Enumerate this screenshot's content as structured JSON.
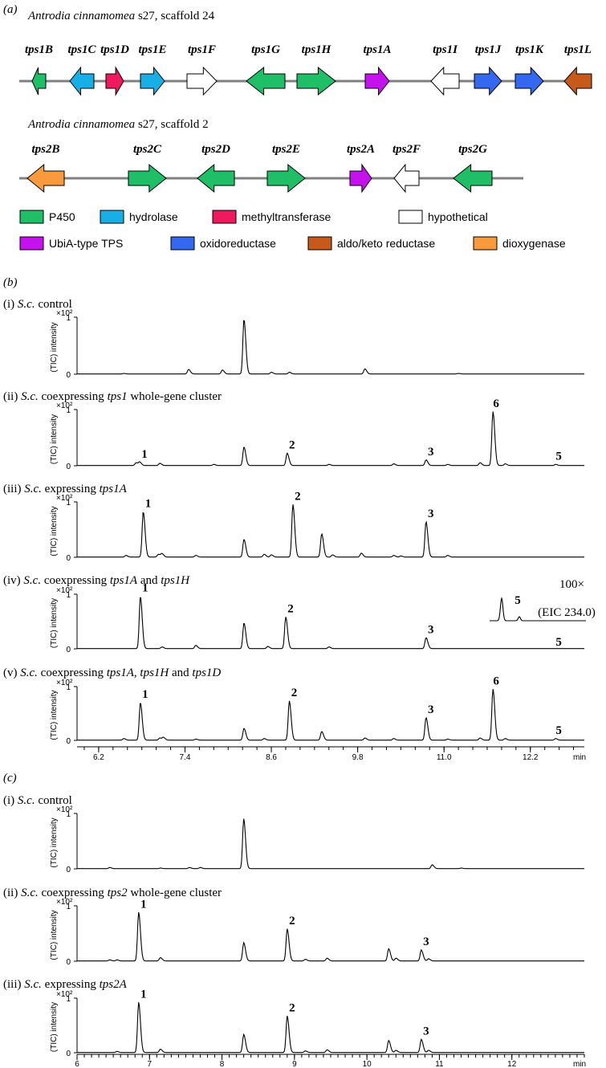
{
  "panel_a": {
    "label": "(a)",
    "colors": {
      "P450": "#1fbf68",
      "hydrolase": "#18aee6",
      "methyltransferase": "#f0185e",
      "hypothetical": "#ffffff",
      "UbiA-type TPS": "#c411ee",
      "oxidoreductase": "#3568f0",
      "aldo/keto reductase": "#c7591a",
      "dioxygenase": "#f99a3c"
    },
    "clusters": [
      {
        "title_species": "Antrodia cinnamomea",
        "title_rest": " s27, scaffold 24",
        "genes": [
          {
            "name": "tps1B",
            "type": "P450",
            "dir": "left"
          },
          {
            "name": "tps1C",
            "type": "hydrolase",
            "dir": "left"
          },
          {
            "name": "tps1D",
            "type": "methyltransferase",
            "dir": "right"
          },
          {
            "name": "tps1E",
            "type": "hydrolase",
            "dir": "right"
          },
          {
            "name": "tps1F",
            "type": "hypothetical",
            "dir": "right"
          },
          {
            "name": "tps1G",
            "type": "P450",
            "dir": "left"
          },
          {
            "name": "tps1H",
            "type": "P450",
            "dir": "right"
          },
          {
            "name": "tps1A",
            "type": "UbiA-type TPS",
            "dir": "right"
          },
          {
            "name": "tps1I",
            "type": "hypothetical",
            "dir": "left"
          },
          {
            "name": "tps1J",
            "type": "oxidoreductase",
            "dir": "right"
          },
          {
            "name": "tps1K",
            "type": "oxidoreductase",
            "dir": "right"
          },
          {
            "name": "tps1L",
            "type": "aldo/keto reductase",
            "dir": "left"
          }
        ]
      },
      {
        "title_species": "Antrodia cinnamomea",
        "title_rest": " s27, scaffold 2",
        "genes": [
          {
            "name": "tps2B",
            "type": "dioxygenase",
            "dir": "left"
          },
          {
            "name": "tps2C",
            "type": "P450",
            "dir": "right"
          },
          {
            "name": "tps2D",
            "type": "P450",
            "dir": "left"
          },
          {
            "name": "tps2E",
            "type": "P450",
            "dir": "right"
          },
          {
            "name": "tps2A",
            "type": "UbiA-type TPS",
            "dir": "right"
          },
          {
            "name": "tps2F",
            "type": "hypothetical",
            "dir": "left"
          },
          {
            "name": "tps2G",
            "type": "P450",
            "dir": "left"
          }
        ]
      }
    ],
    "legend": [
      "P450",
      "hydrolase",
      "methyltransferase",
      "hypothetical",
      "UbiA-type TPS",
      "oxidoreductase",
      "aldo/keto reductase",
      "dioxygenase"
    ]
  },
  "chart_data": [
    {
      "panel": "(b)",
      "type": "line",
      "xlabel": "min",
      "xlim": [
        5.9,
        12.95
      ],
      "xticks": [
        "6.2",
        "7.4",
        "8.6",
        "9.8",
        "11.0",
        "12.2"
      ],
      "xtick_values": [
        6.2,
        7.4,
        8.6,
        9.8,
        11.0,
        12.2
      ],
      "ylabel": "(TIC) intensity",
      "yscale": "×10²",
      "yticks": [
        "0",
        "1"
      ],
      "ylim": [
        0,
        1
      ],
      "traces": [
        {
          "roman": "(i)",
          "title": [
            [
              "S.c.",
              "i"
            ],
            [
              " control",
              "n"
            ]
          ],
          "peaks": [
            [
              7.45,
              0.08
            ],
            [
              7.92,
              0.07
            ],
            [
              8.22,
              0.96
            ],
            [
              8.6,
              0.03
            ],
            [
              8.85,
              0.03
            ],
            [
              9.9,
              0.09
            ],
            [
              6.55,
              0.01
            ],
            [
              11.2,
              0.01
            ]
          ],
          "labels": [],
          "inset": null
        },
        {
          "roman": "(ii)",
          "title": [
            [
              "S.c.",
              "i"
            ],
            [
              " coexpressing ",
              "n"
            ],
            [
              "tps1",
              "i"
            ],
            [
              " whole-gene cluster",
              "n"
            ]
          ],
          "peaks": [
            [
              6.72,
              0.05
            ],
            [
              6.77,
              0.06
            ],
            [
              7.05,
              0.04
            ],
            [
              7.8,
              0.02
            ],
            [
              8.22,
              0.33
            ],
            [
              8.82,
              0.22
            ],
            [
              9.4,
              0.02
            ],
            [
              10.3,
              0.03
            ],
            [
              10.75,
              0.1
            ],
            [
              11.05,
              0.02
            ],
            [
              11.5,
              0.05
            ],
            [
              11.68,
              0.96
            ],
            [
              11.85,
              0.03
            ],
            [
              12.55,
              0.02
            ]
          ],
          "labels": [
            {
              "t": "1",
              "x": 6.77,
              "y": 0.06
            },
            {
              "t": "2",
              "x": 8.82,
              "y": 0.22
            },
            {
              "t": "3",
              "x": 10.75,
              "y": 0.1
            },
            {
              "t": "6",
              "x": 11.68,
              "y": 0.96
            },
            {
              "t": "5",
              "x": 12.55,
              "y": 0.02
            }
          ],
          "inset": null
        },
        {
          "roman": "(iii)",
          "title": [
            [
              "S.c.",
              "i"
            ],
            [
              " expressing ",
              "n"
            ],
            [
              "tps1A",
              "i"
            ]
          ],
          "peaks": [
            [
              6.58,
              0.03
            ],
            [
              6.82,
              0.82
            ],
            [
              7.03,
              0.05
            ],
            [
              7.08,
              0.06
            ],
            [
              7.55,
              0.03
            ],
            [
              8.22,
              0.32
            ],
            [
              8.5,
              0.05
            ],
            [
              8.6,
              0.04
            ],
            [
              8.9,
              0.95
            ],
            [
              9.3,
              0.42
            ],
            [
              9.45,
              0.04
            ],
            [
              9.85,
              0.07
            ],
            [
              10.3,
              0.03
            ],
            [
              10.4,
              0.02
            ],
            [
              10.75,
              0.64
            ],
            [
              11.05,
              0.03
            ]
          ],
          "labels": [
            {
              "t": "1",
              "x": 6.82,
              "y": 0.82
            },
            {
              "t": "2",
              "x": 8.9,
              "y": 0.95
            },
            {
              "t": "3",
              "x": 10.75,
              "y": 0.64
            }
          ],
          "inset": null
        },
        {
          "roman": "(iv)",
          "title": [
            [
              "S.c.",
              "i"
            ],
            [
              " coexpressing ",
              "n"
            ],
            [
              "tps1A",
              "i"
            ],
            [
              " and ",
              "n"
            ],
            [
              "tps1H",
              "i"
            ]
          ],
          "peaks": [
            [
              6.78,
              0.96
            ],
            [
              7.08,
              0.03
            ],
            [
              7.55,
              0.06
            ],
            [
              8.22,
              0.47
            ],
            [
              8.55,
              0.04
            ],
            [
              8.8,
              0.58
            ],
            [
              9.4,
              0.03
            ],
            [
              10.75,
              0.2
            ]
          ],
          "labels": [
            {
              "t": "1",
              "x": 6.78,
              "y": 0.96
            },
            {
              "t": "2",
              "x": 8.8,
              "y": 0.58
            },
            {
              "t": "3",
              "x": 10.75,
              "y": 0.2
            },
            {
              "t": "5",
              "x": 12.55,
              "y": 0.02
            }
          ],
          "inset": {
            "scale": "100×",
            "label": "5",
            "eic": "(EIC 234.0)"
          }
        },
        {
          "roman": "(v)",
          "title": [
            [
              "S.c.",
              "i"
            ],
            [
              " coexpressing ",
              "n"
            ],
            [
              "tps1A, tps1H",
              "i"
            ],
            [
              " and ",
              "n"
            ],
            [
              "tps1D",
              "i"
            ]
          ],
          "peaks": [
            [
              6.55,
              0.03
            ],
            [
              6.78,
              0.7
            ],
            [
              7.05,
              0.04
            ],
            [
              7.1,
              0.05
            ],
            [
              7.55,
              0.02
            ],
            [
              8.22,
              0.22
            ],
            [
              8.5,
              0.03
            ],
            [
              8.85,
              0.73
            ],
            [
              9.3,
              0.16
            ],
            [
              9.9,
              0.04
            ],
            [
              10.3,
              0.03
            ],
            [
              10.75,
              0.42
            ],
            [
              11.05,
              0.02
            ],
            [
              11.5,
              0.04
            ],
            [
              11.68,
              0.95
            ],
            [
              11.85,
              0.03
            ],
            [
              12.55,
              0.03
            ]
          ],
          "labels": [
            {
              "t": "1",
              "x": 6.78,
              "y": 0.7
            },
            {
              "t": "2",
              "x": 8.85,
              "y": 0.73
            },
            {
              "t": "3",
              "x": 10.75,
              "y": 0.42
            },
            {
              "t": "6",
              "x": 11.68,
              "y": 0.95
            },
            {
              "t": "5",
              "x": 12.55,
              "y": 0.03
            }
          ],
          "inset": null
        }
      ]
    },
    {
      "panel": "(c)",
      "type": "line",
      "xlabel": "min",
      "xlim": [
        6.0,
        13.0
      ],
      "xticks": [
        "6",
        "7",
        "8",
        "9",
        "10",
        "11",
        "12"
      ],
      "xtick_values": [
        6,
        7,
        8,
        9,
        10,
        11,
        12
      ],
      "ylabel": "(TIC) intensity",
      "yscale": "×10²",
      "yticks": [
        "0",
        "1"
      ],
      "ylim": [
        0,
        1
      ],
      "traces": [
        {
          "roman": "(i)",
          "title": [
            [
              "S.c.",
              "i"
            ],
            [
              " control",
              "n"
            ]
          ],
          "peaks": [
            [
              6.45,
              0.02
            ],
            [
              7.15,
              0.01
            ],
            [
              7.55,
              0.02
            ],
            [
              7.7,
              0.02
            ],
            [
              8.3,
              0.9
            ],
            [
              10.9,
              0.07
            ],
            [
              11.3,
              0.01
            ]
          ],
          "labels": [],
          "inset": null
        },
        {
          "roman": "(ii)",
          "title": [
            [
              "S.c.",
              "i"
            ],
            [
              " coexpressing ",
              "n"
            ],
            [
              "tps2",
              "i"
            ],
            [
              " whole-gene cluster",
              "n"
            ]
          ],
          "peaks": [
            [
              6.45,
              0.02
            ],
            [
              6.55,
              0.02
            ],
            [
              6.85,
              0.88
            ],
            [
              7.15,
              0.06
            ],
            [
              8.3,
              0.33
            ],
            [
              8.9,
              0.58
            ],
            [
              9.15,
              0.03
            ],
            [
              9.45,
              0.05
            ],
            [
              10.3,
              0.22
            ],
            [
              10.4,
              0.05
            ],
            [
              10.75,
              0.2
            ],
            [
              10.85,
              0.04
            ]
          ],
          "labels": [
            {
              "t": "1",
              "x": 6.85,
              "y": 0.88
            },
            {
              "t": "2",
              "x": 8.9,
              "y": 0.58
            },
            {
              "t": "3",
              "x": 10.75,
              "y": 0.2
            }
          ],
          "inset": null
        },
        {
          "roman": "(iii)",
          "title": [
            [
              "S.c.",
              "i"
            ],
            [
              " expressing ",
              "n"
            ],
            [
              "tps2A",
              "i"
            ]
          ],
          "peaks": [
            [
              6.55,
              0.02
            ],
            [
              6.85,
              0.92
            ],
            [
              7.15,
              0.06
            ],
            [
              8.3,
              0.33
            ],
            [
              8.9,
              0.67
            ],
            [
              9.15,
              0.03
            ],
            [
              9.45,
              0.05
            ],
            [
              10.3,
              0.22
            ],
            [
              10.4,
              0.04
            ],
            [
              10.75,
              0.24
            ],
            [
              10.85,
              0.04
            ]
          ],
          "labels": [
            {
              "t": "1",
              "x": 6.85,
              "y": 0.92
            },
            {
              "t": "2",
              "x": 8.9,
              "y": 0.67
            },
            {
              "t": "3",
              "x": 10.75,
              "y": 0.24
            }
          ],
          "inset": null
        }
      ]
    }
  ]
}
